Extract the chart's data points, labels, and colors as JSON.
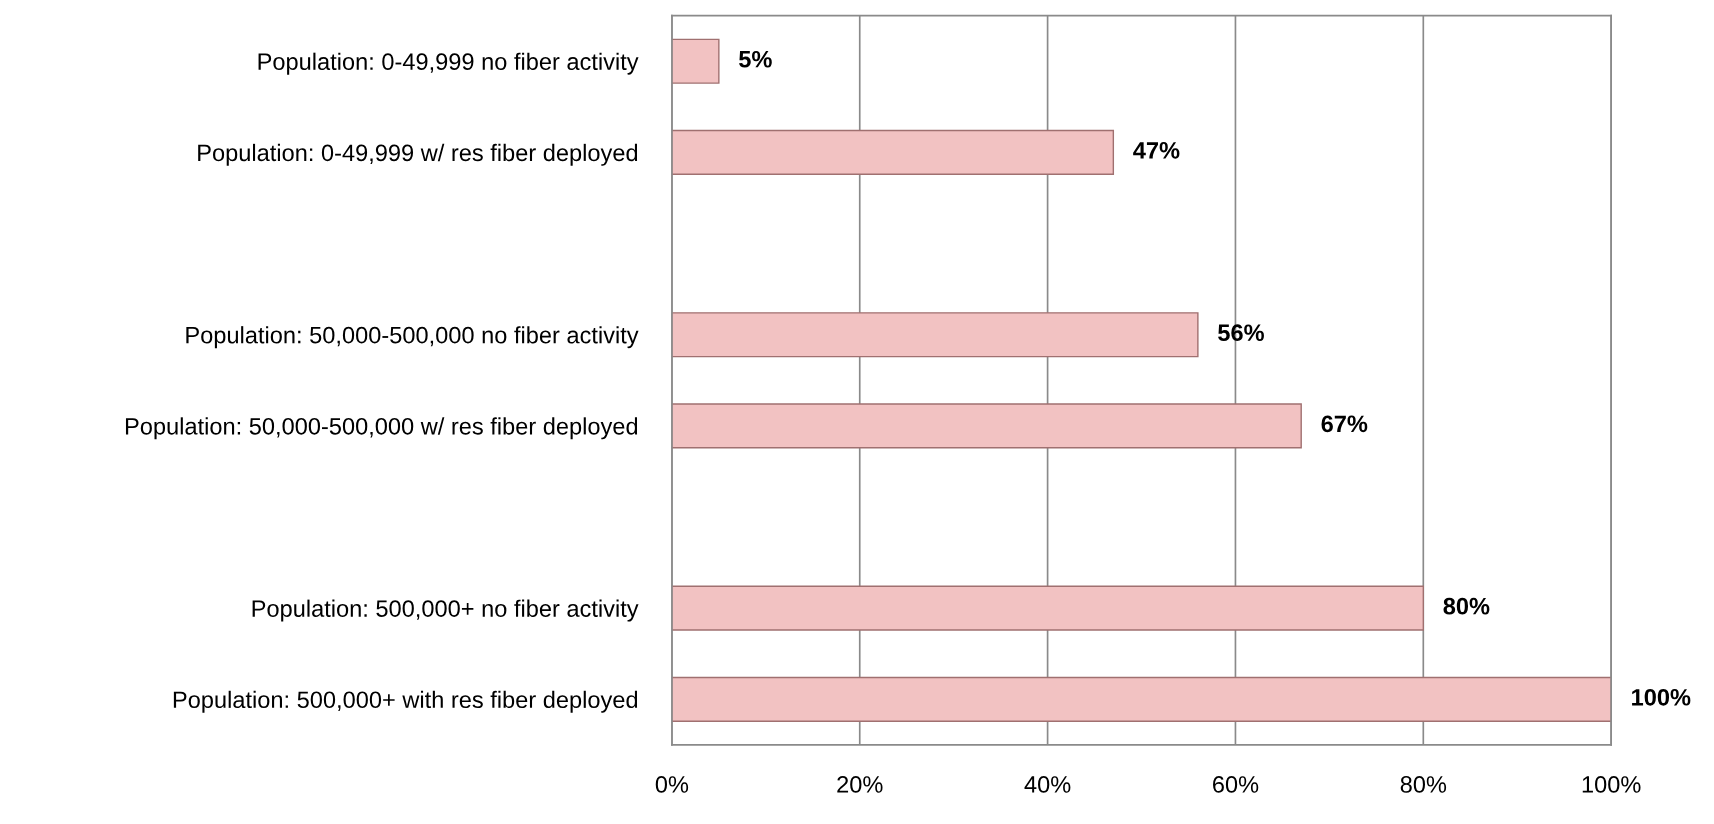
{
  "chart_data": {
    "type": "bar",
    "orientation": "horizontal",
    "categories": [
      "Population: 0-49,999 no fiber activity",
      "Population: 0-49,999 w/ res fiber deployed",
      null,
      "Population: 50,000-500,000 no fiber activity",
      "Population: 50,000-500,000 w/ res fiber deployed",
      null,
      "Population: 500,000+ no fiber activity",
      "Population: 500,000+ with res fiber deployed"
    ],
    "values": [
      5,
      47,
      null,
      56,
      67,
      null,
      80,
      100
    ],
    "value_labels": [
      "5%",
      "47%",
      null,
      "56%",
      "67%",
      null,
      "80%",
      "100%"
    ],
    "color": "#f2c2c2",
    "xlim": [
      0,
      100
    ],
    "xticks": [
      {
        "value": 0,
        "label": "0%"
      },
      {
        "value": 20,
        "label": "20%"
      },
      {
        "value": 40,
        "label": "40%"
      },
      {
        "value": 60,
        "label": "60%"
      },
      {
        "value": 80,
        "label": "80%"
      },
      {
        "value": 100,
        "label": "100%"
      }
    ],
    "grid": "x"
  }
}
